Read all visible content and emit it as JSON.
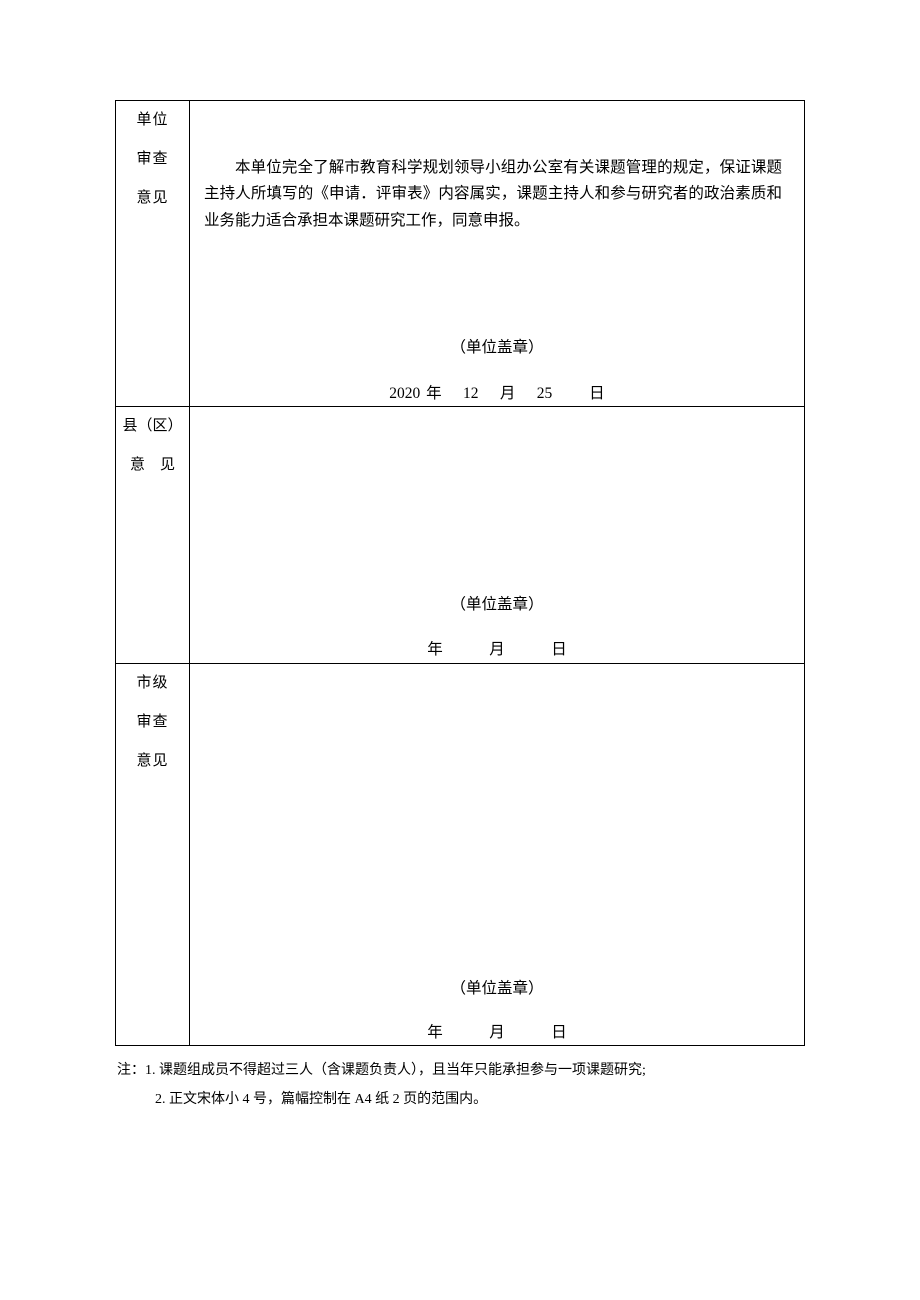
{
  "table": {
    "border_color": "#000000",
    "background_color": "#ffffff",
    "font_family": "SimSun",
    "rows": [
      {
        "label_lines": [
          "单位",
          "审查",
          "意见"
        ],
        "body": "本单位完全了解市教育科学规划领导小组办公室有关课题管理的规定，保证课题主持人所填写的《申请．评审表》内容属实，课题主持人和参与研究者的政治素质和业务能力适合承担本课题研究工作，同意申报。",
        "seal": "（单位盖章）",
        "date": "2020 年　 12 　月　 25 　　日"
      },
      {
        "label_lines": [
          "县（区）",
          "意　见"
        ],
        "body": "",
        "seal": "（单位盖章）",
        "date": "年　　　月　　　日"
      },
      {
        "label_lines": [
          "市级",
          "审查",
          "意见"
        ],
        "body": "",
        "seal": "（单位盖章）",
        "date": "年　　　月　　　日"
      }
    ]
  },
  "notes": {
    "prefix": "注：",
    "line1": "1. 课题组成员不得超过三人（含课题负责人），且当年只能承担参与一项课题研究;",
    "line2": "2. 正文宋体小 4 号，篇幅控制在 A4 纸 2 页的范围内。"
  },
  "style": {
    "body_fontsize": 15.5,
    "label_fontsize": 15,
    "note_fontsize": 14,
    "text_color": "#000000"
  }
}
